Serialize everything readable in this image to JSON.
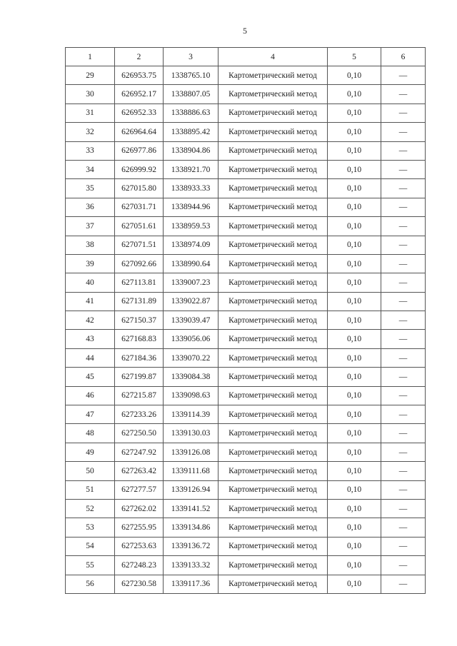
{
  "page_number": "5",
  "headers": [
    "1",
    "2",
    "3",
    "4",
    "5",
    "6"
  ],
  "rows": [
    [
      "29",
      "626953.75",
      "1338765.10",
      "Картометрический метод",
      "0,10",
      "—"
    ],
    [
      "30",
      "626952.17",
      "1338807.05",
      "Картометрический метод",
      "0,10",
      "—"
    ],
    [
      "31",
      "626952.33",
      "1338886.63",
      "Картометрический метод",
      "0,10",
      "—"
    ],
    [
      "32",
      "626964.64",
      "1338895.42",
      "Картометрический метод",
      "0,10",
      "—"
    ],
    [
      "33",
      "626977.86",
      "1338904.86",
      "Картометрический метод",
      "0,10",
      "—"
    ],
    [
      "34",
      "626999.92",
      "1338921.70",
      "Картометрический метод",
      "0,10",
      "—"
    ],
    [
      "35",
      "627015.80",
      "1338933.33",
      "Картометрический метод",
      "0,10",
      "—"
    ],
    [
      "36",
      "627031.71",
      "1338944.96",
      "Картометрический метод",
      "0,10",
      "—"
    ],
    [
      "37",
      "627051.61",
      "1338959.53",
      "Картометрический метод",
      "0,10",
      "—"
    ],
    [
      "38",
      "627071.51",
      "1338974.09",
      "Картометрический метод",
      "0,10",
      "—"
    ],
    [
      "39",
      "627092.66",
      "1338990.64",
      "Картометрический метод",
      "0,10",
      "—"
    ],
    [
      "40",
      "627113.81",
      "1339007.23",
      "Картометрический метод",
      "0,10",
      "—"
    ],
    [
      "41",
      "627131.89",
      "1339022.87",
      "Картометрический метод",
      "0,10",
      "—"
    ],
    [
      "42",
      "627150.37",
      "1339039.47",
      "Картометрический метод",
      "0,10",
      "—"
    ],
    [
      "43",
      "627168.83",
      "1339056.06",
      "Картометрический метод",
      "0,10",
      "—"
    ],
    [
      "44",
      "627184.36",
      "1339070.22",
      "Картометрический метод",
      "0,10",
      "—"
    ],
    [
      "45",
      "627199.87",
      "1339084.38",
      "Картометрический метод",
      "0,10",
      "—"
    ],
    [
      "46",
      "627215.87",
      "1339098.63",
      "Картометрический метод",
      "0,10",
      "—"
    ],
    [
      "47",
      "627233.26",
      "1339114.39",
      "Картометрический метод",
      "0,10",
      "—"
    ],
    [
      "48",
      "627250.50",
      "1339130.03",
      "Картометрический метод",
      "0,10",
      "—"
    ],
    [
      "49",
      "627247.92",
      "1339126.08",
      "Картометрический метод",
      "0,10",
      "—"
    ],
    [
      "50",
      "627263.42",
      "1339111.68",
      "Картометрический метод",
      "0,10",
      "—"
    ],
    [
      "51",
      "627277.57",
      "1339126.94",
      "Картометрический метод",
      "0,10",
      "—"
    ],
    [
      "52",
      "627262.02",
      "1339141.52",
      "Картометрический метод",
      "0,10",
      "—"
    ],
    [
      "53",
      "627255.95",
      "1339134.86",
      "Картометрический метод",
      "0,10",
      "—"
    ],
    [
      "54",
      "627253.63",
      "1339136.72",
      "Картометрический метод",
      "0,10",
      "—"
    ],
    [
      "55",
      "627248.23",
      "1339133.32",
      "Картометрический метод",
      "0,10",
      "—"
    ],
    [
      "56",
      "627230.58",
      "1339117.36",
      "Картометрический метод",
      "0,10",
      "—"
    ]
  ]
}
